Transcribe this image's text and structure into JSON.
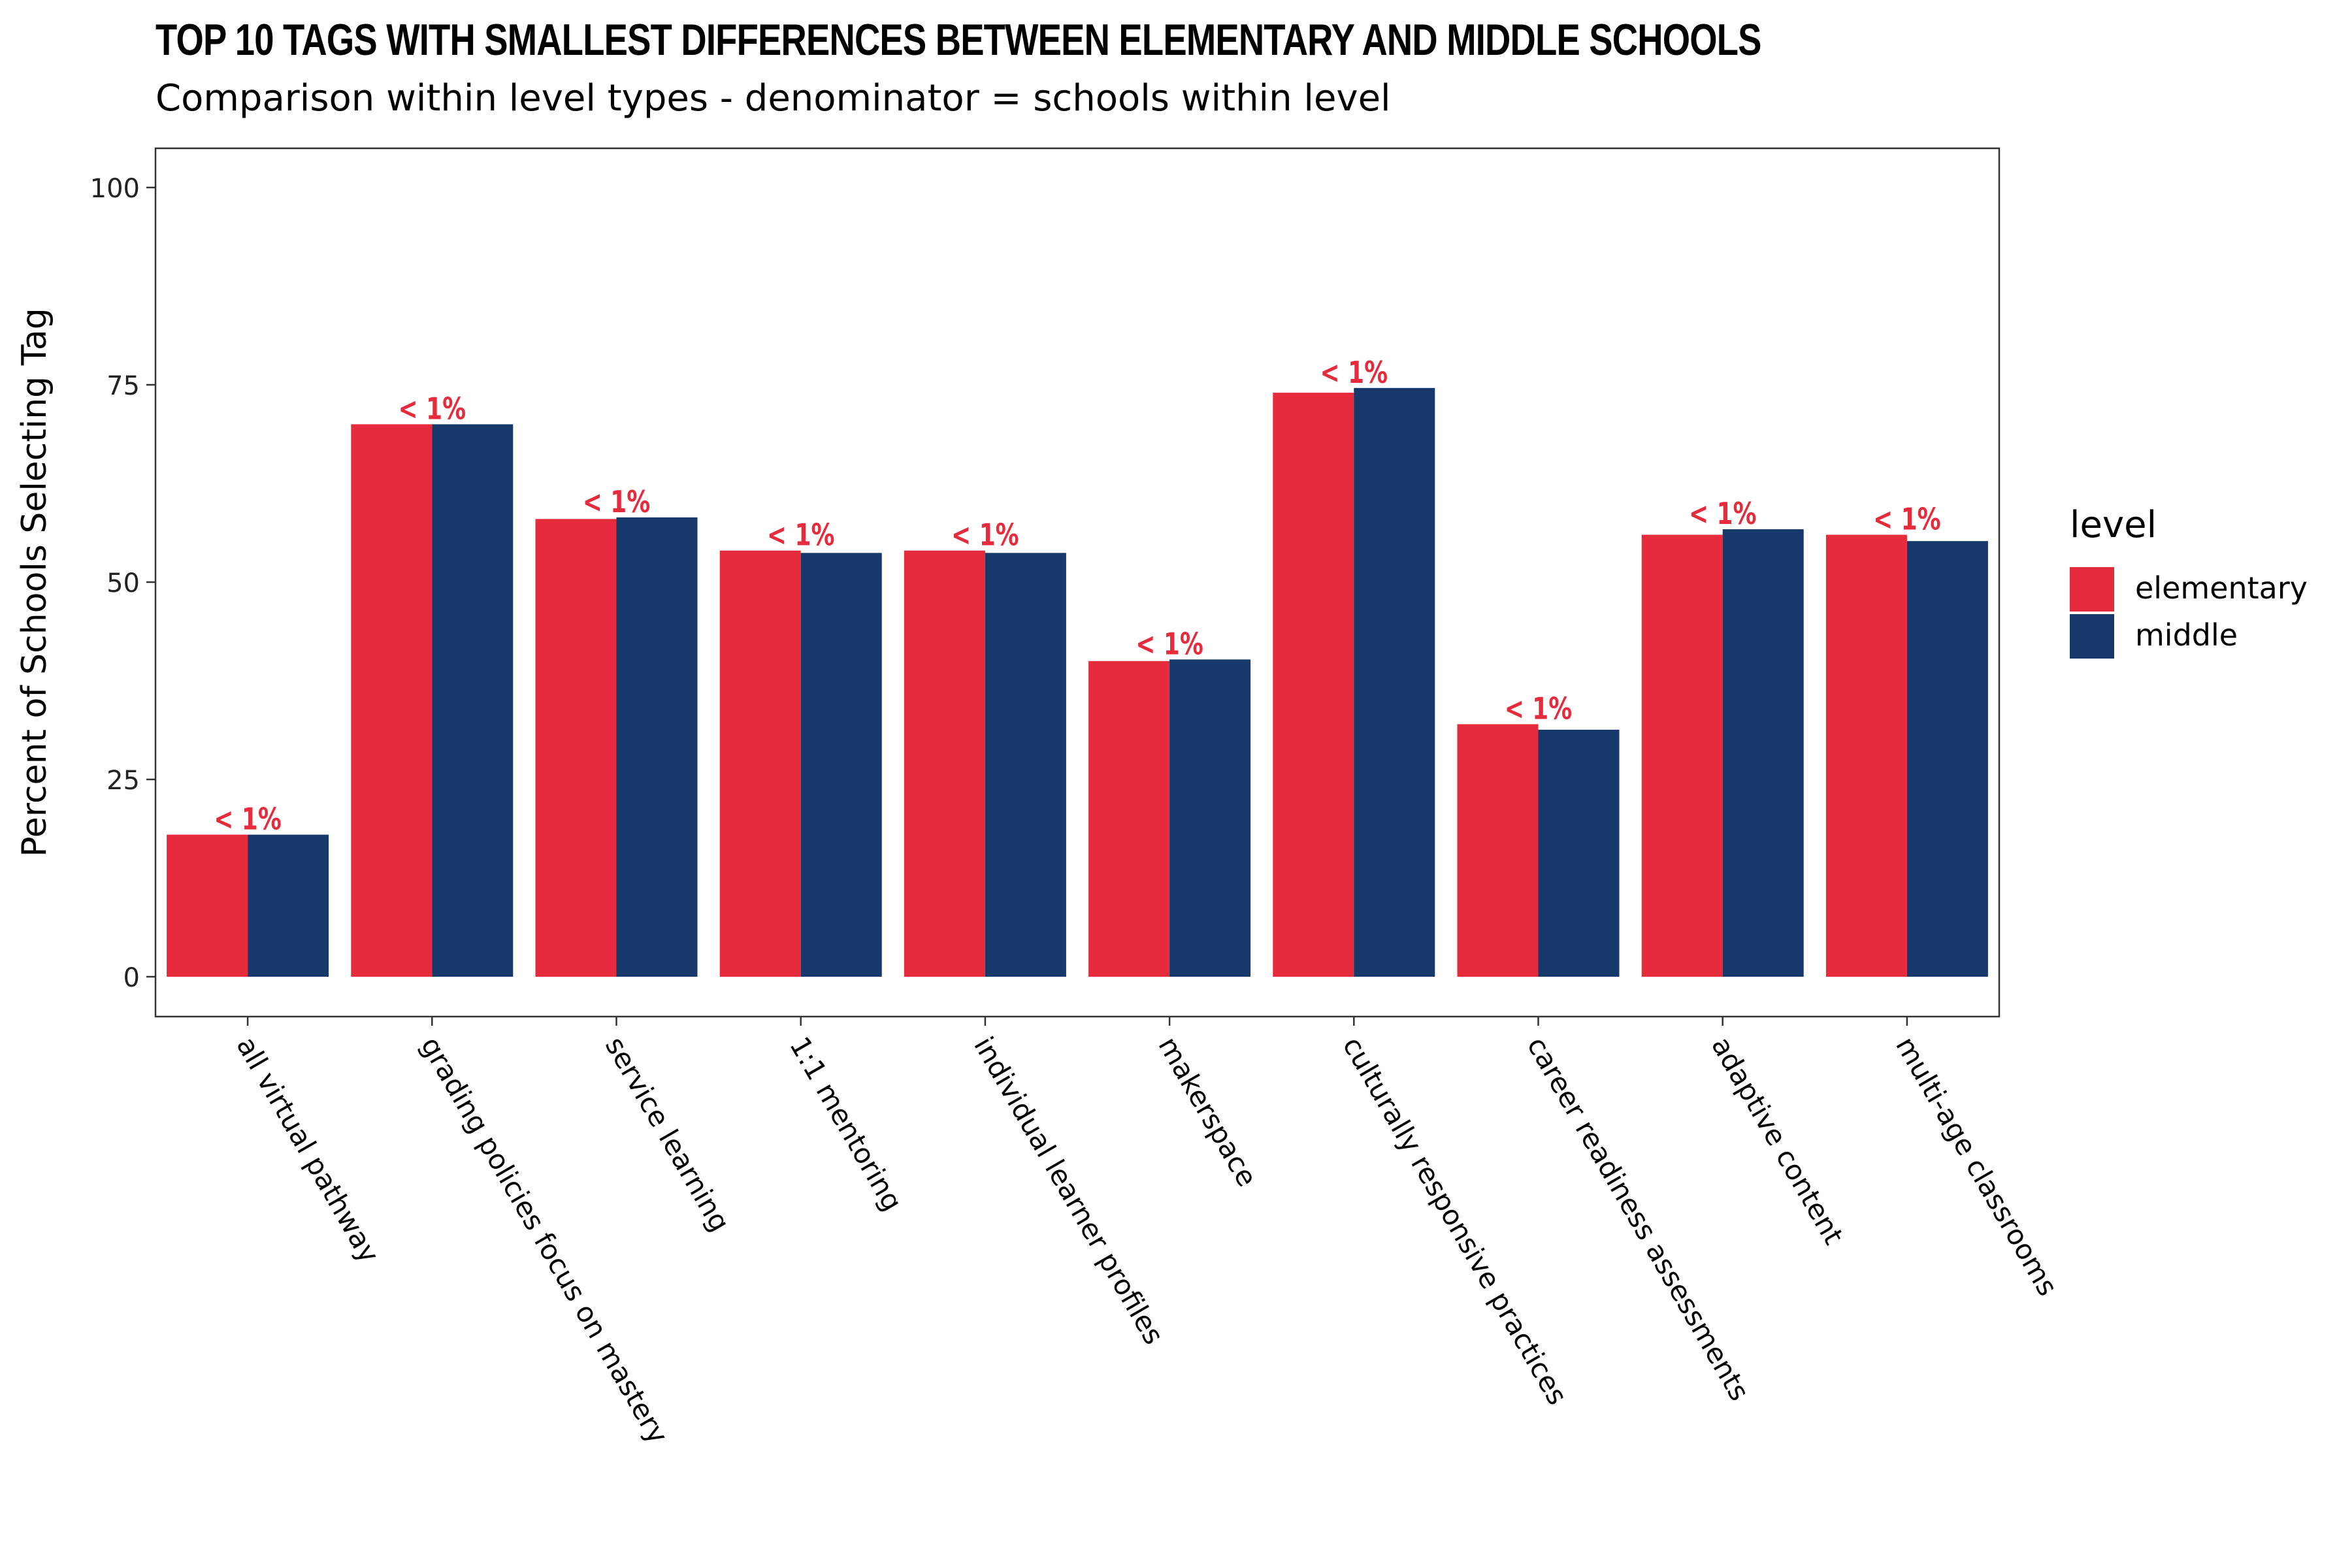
{
  "chart_data": {
    "type": "bar",
    "title": "TOP 10 TAGS WITH SMALLEST DIFFERENCES BETWEEN ELEMENTARY AND MIDDLE SCHOOLS",
    "subtitle": "Comparison within level types - denominator = schools within level",
    "xlabel": "",
    "ylabel": "Percent of Schools Selecting Tag",
    "ylim": [
      -5,
      105
    ],
    "yticks": [
      0,
      25,
      50,
      75,
      100
    ],
    "grid": false,
    "legend": {
      "title": "level",
      "position": "right"
    },
    "categories": [
      "all virtual pathway",
      "grading policies focus on mastery",
      "service learning",
      "1:1 mentoring",
      "individual learner profiles",
      "makerspace",
      "culturally responsive practices",
      "career readiness assessments",
      "adaptive content",
      "multi-age classrooms"
    ],
    "series": [
      {
        "name": "elementary",
        "color": "#E62C3C",
        "values": [
          18,
          70,
          58,
          54,
          54,
          40,
          74,
          32,
          56,
          56
        ]
      },
      {
        "name": "middle",
        "color": "#17386B",
        "values": [
          18,
          70,
          58.2,
          53.7,
          53.7,
          40.2,
          74.6,
          31.3,
          56.7,
          55.2
        ]
      }
    ],
    "annotations": [
      "< 1%",
      "< 1%",
      "< 1%",
      "< 1%",
      "< 1%",
      "< 1%",
      "< 1%",
      "< 1%",
      "< 1%",
      "< 1%"
    ],
    "annotation_color": "#E62C3C"
  }
}
